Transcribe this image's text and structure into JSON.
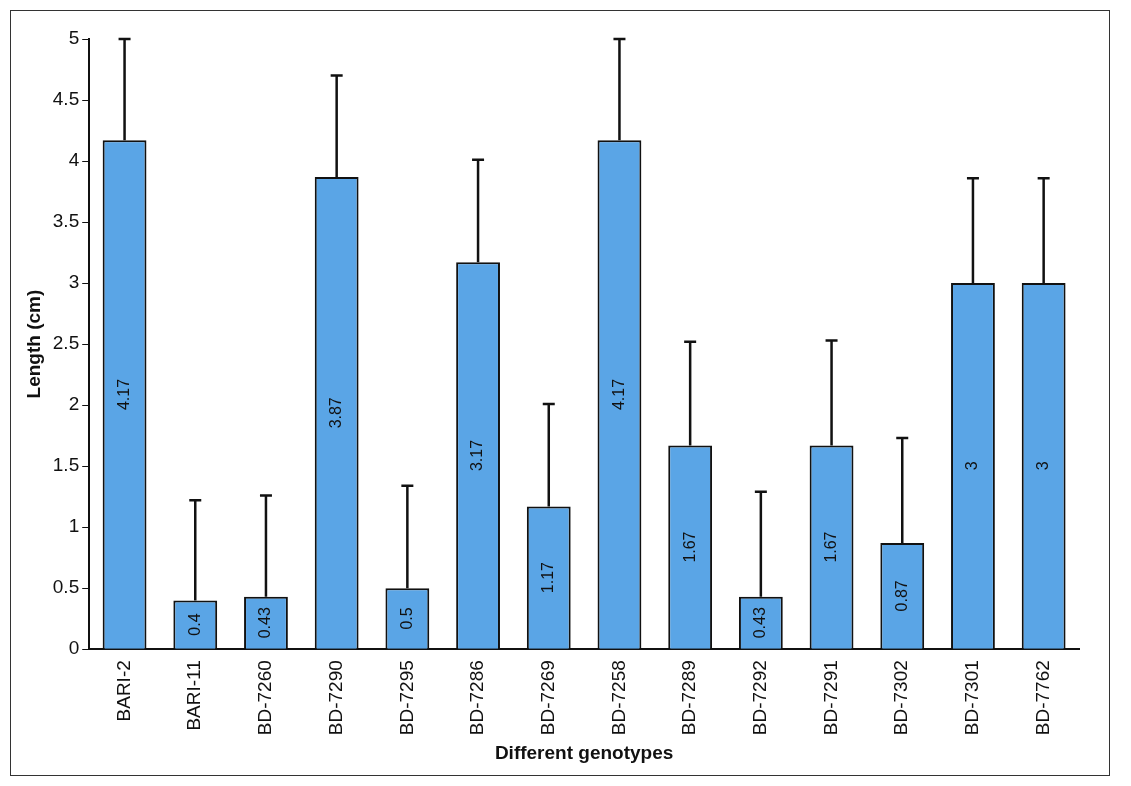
{
  "chart_data": {
    "type": "bar",
    "xlabel": "Different genotypes",
    "ylabel": "Length (cm)",
    "categories": [
      "BARI-2",
      "BARI-11",
      "BD-7260",
      "BD-7290",
      "BD-7295",
      "BD-7286",
      "BD-7269",
      "BD-7258",
      "BD-7289",
      "BD-7292",
      "BD-7291",
      "BD-7302",
      "BD-7301",
      "BD-7762"
    ],
    "values": [
      4.17,
      0.4,
      0.43,
      3.87,
      0.5,
      3.17,
      1.17,
      4.17,
      1.67,
      0.43,
      1.67,
      0.87,
      3,
      3
    ],
    "errors": [
      [
        4.17,
        5.0
      ],
      [
        0.4,
        1.22
      ],
      [
        0.43,
        1.26
      ],
      [
        3.87,
        4.7
      ],
      [
        0.5,
        1.34
      ],
      [
        3.17,
        4.01
      ],
      [
        1.17,
        2.01
      ],
      [
        4.17,
        5.0
      ],
      [
        1.67,
        2.52
      ],
      [
        0.43,
        1.29
      ],
      [
        1.67,
        2.53
      ],
      [
        0.87,
        1.73
      ],
      [
        3,
        3.86
      ],
      [
        3,
        3.86
      ]
    ],
    "color": "#5aa5e6",
    "data_labels": true,
    "ylim": [
      0,
      5
    ],
    "yticks": [
      0,
      0.5,
      1,
      1.5,
      2,
      2.5,
      3,
      3.5,
      4,
      4.5,
      5
    ]
  }
}
